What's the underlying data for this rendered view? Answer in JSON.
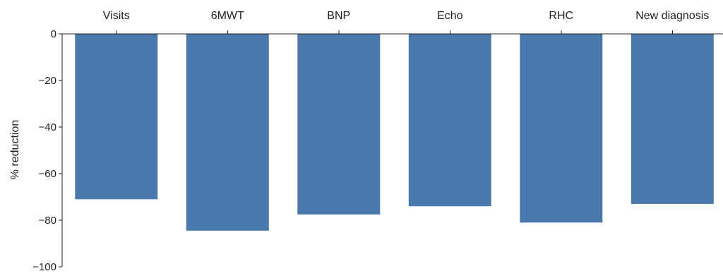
{
  "chart_data": {
    "type": "bar",
    "categories": [
      "Visits",
      "6MWT",
      "BNP",
      "Echo",
      "RHC",
      "New diagnosis"
    ],
    "values": [
      -71,
      -84.5,
      -77.5,
      -74,
      -81,
      -73
    ],
    "title": "",
    "xlabel": "",
    "ylabel": "% reduction",
    "ylim": [
      -100,
      0
    ],
    "yticks": [
      0,
      -20,
      -40,
      -60,
      -80,
      -100
    ],
    "ytick_labels": [
      "0",
      "−20",
      "−40",
      "−60",
      "−80",
      "−100"
    ],
    "x_axis_position": "top",
    "grid": false,
    "legend": "none",
    "bar_color": "#4878ad"
  }
}
